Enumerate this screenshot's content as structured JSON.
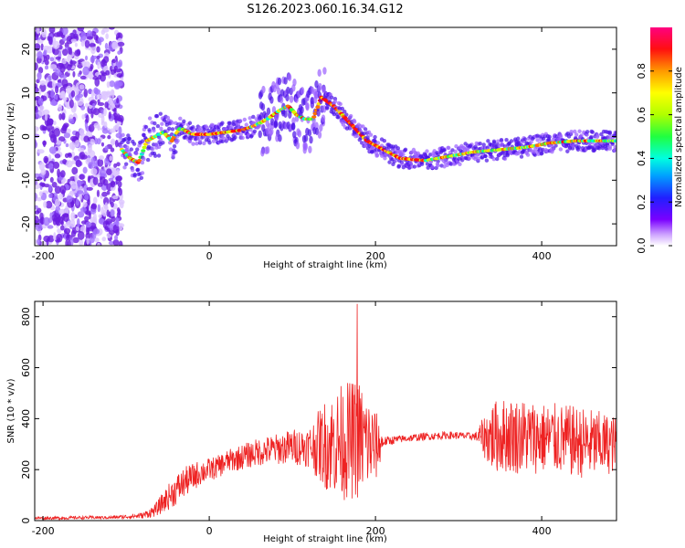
{
  "title": "S126.2023.060.16.34.G12",
  "colors": {
    "spectrum_low": "#5a00e0",
    "spectrum_mid": "#00c8ff",
    "spectrum_high": "#ff1020",
    "snr_line": "#ee2222",
    "axis": "#000000"
  },
  "chart_data": [
    {
      "type": "heatmap",
      "xlabel": "Height of straight line (km)",
      "ylabel": "Frequency (Hz)",
      "xlim": [
        -210,
        490
      ],
      "ylim": [
        -25,
        25
      ],
      "xticks": [
        -200,
        0,
        200,
        400
      ],
      "yticks": [
        -20,
        -10,
        0,
        10,
        20
      ],
      "grid": false,
      "colorbar": {
        "label": "Normalized spectral amplitude",
        "range": [
          0.0,
          1.0
        ],
        "ticks": [
          0.0,
          0.2,
          0.4,
          0.6,
          0.8
        ],
        "tick_labels": [
          "0.0",
          "0.2",
          "0.4",
          "0.6",
          "0.8"
        ]
      },
      "noise_region_x": [
        -210,
        -105
      ],
      "ridge": {
        "x": [
          -105,
          -95,
          -85,
          -75,
          -65,
          -55,
          -45,
          -35,
          -20,
          0,
          20,
          40,
          55,
          70,
          85,
          95,
          105,
          115,
          125,
          135,
          150,
          170,
          190,
          210,
          230,
          260,
          290,
          320,
          350,
          380,
          410,
          440,
          470,
          490
        ],
        "y": [
          -3,
          -5,
          -6,
          -1,
          0,
          1,
          -1,
          2,
          0.5,
          0.5,
          1,
          1.5,
          2.5,
          4,
          6,
          7,
          5,
          4,
          4,
          9,
          7,
          3,
          -1,
          -3,
          -5,
          -5.5,
          -4.5,
          -3.5,
          -3,
          -2.5,
          -1.5,
          -1,
          -1,
          -1
        ]
      }
    },
    {
      "type": "line",
      "xlabel": "Height of straight line (km)",
      "ylabel": "SNR (10 * v/v)",
      "xlim": [
        -210,
        490
      ],
      "ylim": [
        0,
        860
      ],
      "xticks": [
        -200,
        0,
        200,
        400
      ],
      "yticks": [
        0,
        200,
        400,
        600,
        800
      ],
      "grid": false,
      "envelope": {
        "x": [
          -210,
          -180,
          -150,
          -120,
          -100,
          -80,
          -65,
          -50,
          -40,
          -30,
          -20,
          -10,
          0,
          10,
          20,
          40,
          60,
          80,
          100,
          120,
          140,
          160,
          180,
          200,
          210,
          230,
          260,
          290,
          320,
          340,
          360,
          380,
          400,
          420,
          440,
          460,
          480,
          490
        ],
        "mean": [
          10,
          10,
          12,
          12,
          15,
          20,
          40,
          90,
          120,
          150,
          170,
          190,
          200,
          210,
          230,
          250,
          270,
          280,
          290,
          290,
          300,
          310,
          320,
          290,
          310,
          320,
          330,
          335,
          330,
          330,
          335,
          330,
          325,
          320,
          310,
          300,
          300,
          300
        ],
        "noise": [
          6,
          6,
          6,
          6,
          8,
          12,
          25,
          50,
          60,
          60,
          55,
          50,
          45,
          45,
          45,
          50,
          55,
          60,
          70,
          80,
          180,
          230,
          240,
          150,
          20,
          15,
          15,
          15,
          15,
          140,
          150,
          150,
          140,
          140,
          140,
          140,
          120,
          110
        ]
      },
      "peak": {
        "x": 178,
        "y": 850
      }
    }
  ]
}
